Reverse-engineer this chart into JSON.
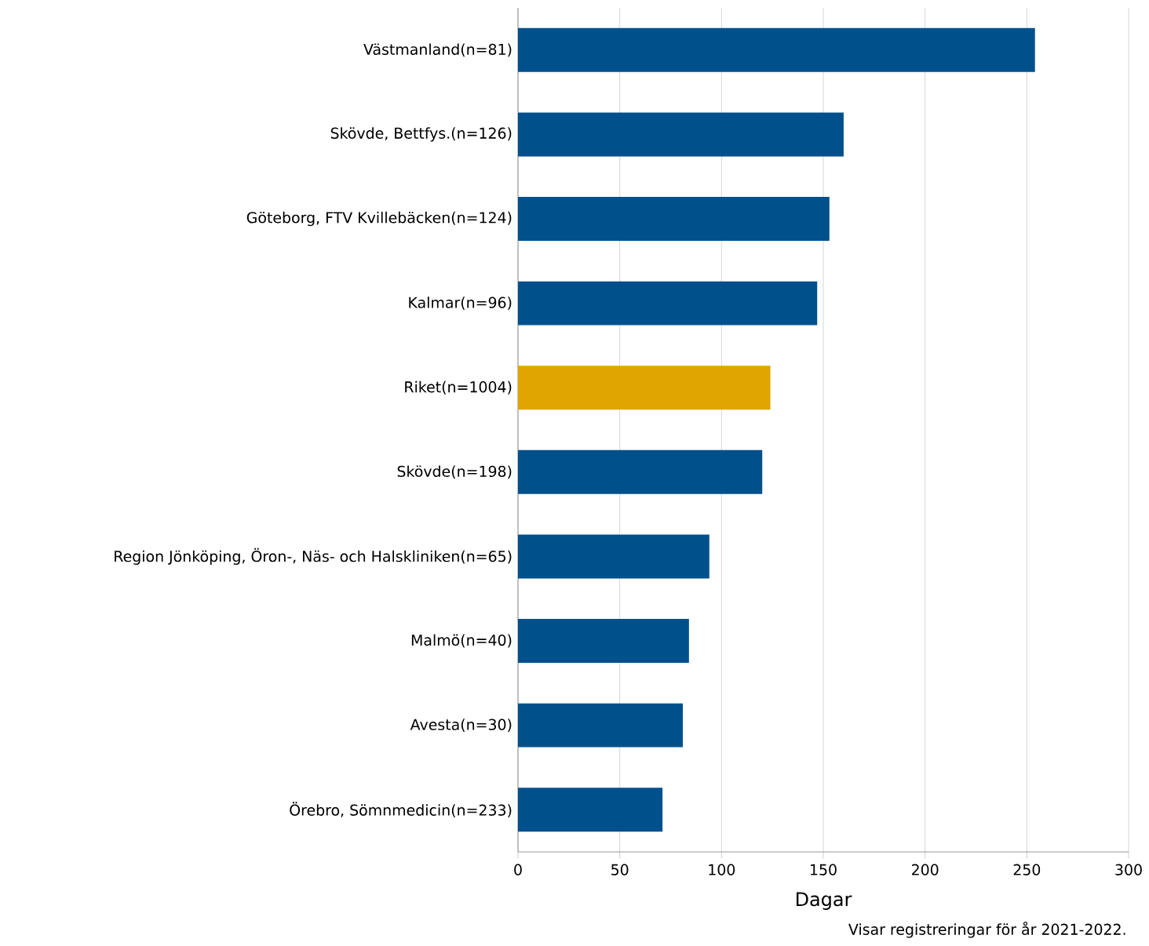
{
  "chart_data": {
    "type": "bar",
    "orientation": "horizontal",
    "categories": [
      "Västmanland(n=81)",
      "Skövde, Bettfys.(n=126)",
      "Göteborg, FTV Kvillebäcken(n=124)",
      "Kalmar(n=96)",
      "Riket(n=1004)",
      "Skövde(n=198)",
      "Region Jönköping, Öron-, Näs- och Halskliniken(n=65)",
      "Malmö(n=40)",
      "Avesta(n=30)",
      "Örebro, Sömnmedicin(n=233)"
    ],
    "values": [
      254,
      160,
      153,
      147,
      124,
      120,
      94,
      84,
      81,
      71
    ],
    "colors": [
      "#00508c",
      "#00508c",
      "#00508c",
      "#00508c",
      "#e0a500",
      "#00508c",
      "#00508c",
      "#00508c",
      "#00508c",
      "#00508c"
    ],
    "xlabel": "Dagar",
    "xlim": [
      0,
      300
    ],
    "xticks": [
      0,
      50,
      100,
      150,
      200,
      250,
      300
    ],
    "grid": "x",
    "annotations": [
      "Visar registreringar för år 2021-2022."
    ]
  }
}
